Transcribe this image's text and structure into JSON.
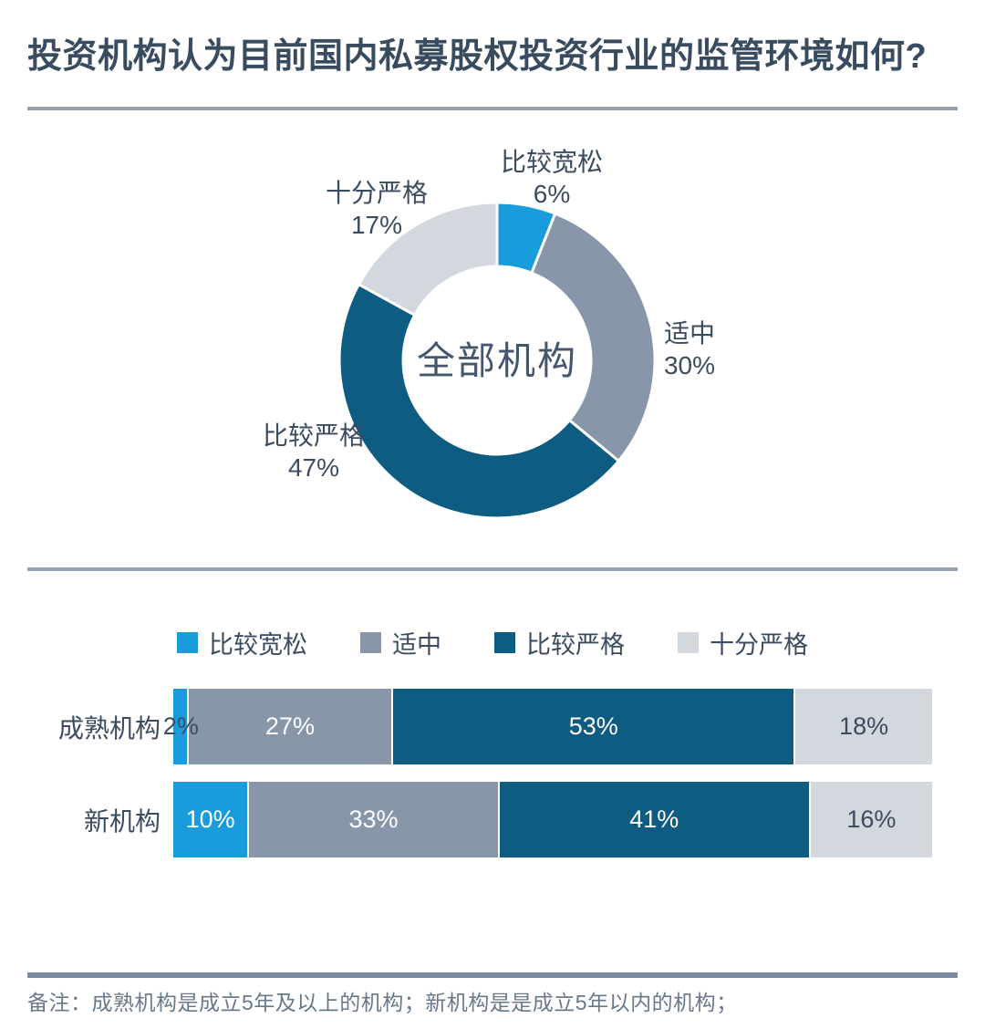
{
  "page": {
    "title": "投资机构认为目前国内私募股权投资行业的监管环境如何?"
  },
  "colors": {
    "title_text": "#394B5F",
    "body_text": "#3B4C60",
    "note_text": "#68798C",
    "divider": "#97A2B1",
    "divider_bottom": "#7A8CA0",
    "series_loose": "#189CDC",
    "series_moderate": "#8796A9",
    "series_strict": "#0E5C82",
    "series_very_strict": "#D3D8DF"
  },
  "note": {
    "text": "备注：成熟机构是成立5年及以上的机构；新机构是是成立5年以内的机构；"
  },
  "chart_data": [
    {
      "type": "pie",
      "subtype": "donut",
      "center_label": "全部机构",
      "categories": [
        "比较宽松",
        "适中",
        "比较严格",
        "十分严格"
      ],
      "values": [
        6,
        30,
        47,
        17
      ],
      "labels_pct": [
        "6%",
        "30%",
        "47%",
        "17%"
      ],
      "colors": [
        "#189CDC",
        "#8796A9",
        "#0E5C82",
        "#D3D8DF"
      ],
      "legend_position": "none",
      "start_angle_deg": 0,
      "direction": "clockwise"
    },
    {
      "type": "bar",
      "subtype": "stacked-horizontal-100pct",
      "categories": [
        "成熟机构",
        "新机构"
      ],
      "series": [
        {
          "name": "比较宽松",
          "color": "#189CDC",
          "label_color": "#FFFFFF",
          "values": [
            2,
            10
          ]
        },
        {
          "name": "适中",
          "color": "#8796A9",
          "label_color": "#FFFFFF",
          "values": [
            27,
            33
          ]
        },
        {
          "name": "比较严格",
          "color": "#0E5C82",
          "label_color": "#FFFFFF",
          "values": [
            53,
            41
          ]
        },
        {
          "name": "十分严格",
          "color": "#D3D8DF",
          "label_color": "#3B4C60",
          "values": [
            18,
            16
          ]
        }
      ],
      "value_labels": [
        [
          "2%",
          "27%",
          "53%",
          "18%"
        ],
        [
          "10%",
          "33%",
          "41%",
          "16%"
        ]
      ],
      "xlim": [
        0,
        100
      ],
      "grid": false,
      "legend_position": "top-center"
    }
  ]
}
